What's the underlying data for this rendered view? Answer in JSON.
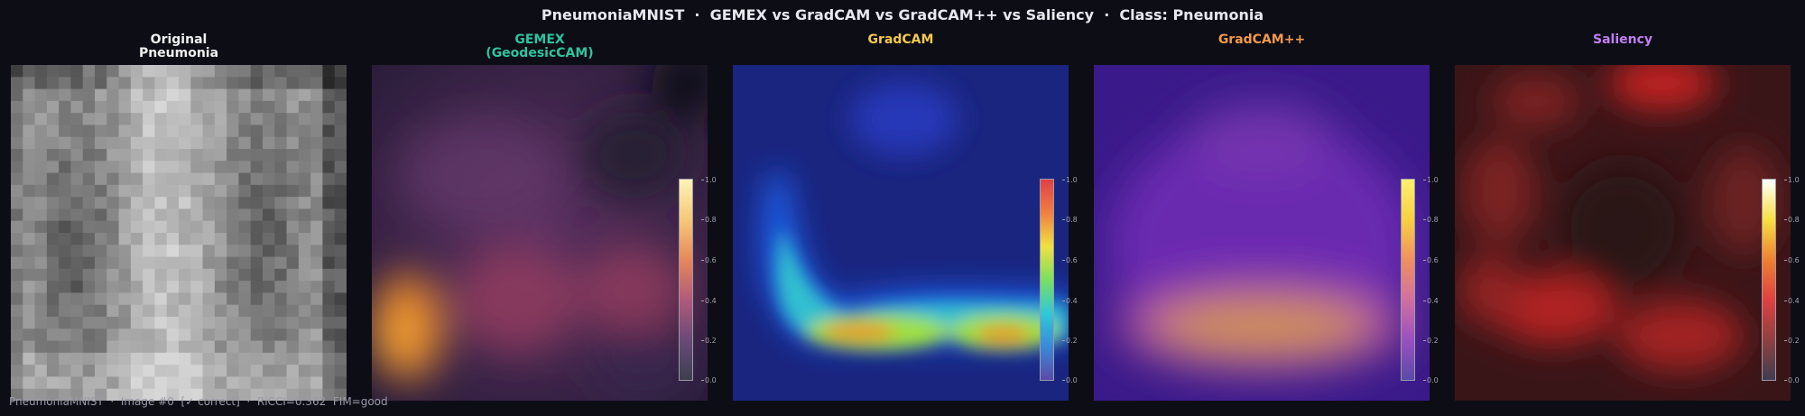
{
  "title": "PneumoniaMNIST  ·  GEMEX vs GradCAM vs GradCAM++ vs Saliency  ·  Class: Pneumonia",
  "panels": [
    {
      "title_line1": "Original",
      "title_line2": "Pneumonia",
      "color": "#f0f0f0",
      "colormap": null
    },
    {
      "title_line1": "GEMEX",
      "title_line2": "(GeodesicCAM)",
      "color": "#2ec4a0",
      "colormap": "magma"
    },
    {
      "title_line1": "GradCAM",
      "title_line2": "",
      "color": "#f2c94c",
      "colormap": "jet"
    },
    {
      "title_line1": "GradCAM++",
      "title_line2": "",
      "color": "#f2994a",
      "colormap": "plasma"
    },
    {
      "title_line1": "Saliency",
      "title_line2": "",
      "color": "#c07ff0",
      "colormap": "hot"
    }
  ],
  "colorbar_ticks": [
    "1.0",
    "0.8",
    "0.6",
    "0.4",
    "0.2",
    "0.0"
  ],
  "footer": "PneumoniaMNIST  ·  Image #0  [✓ correct]  ·  RiCCI=0.362  FIM=good"
}
